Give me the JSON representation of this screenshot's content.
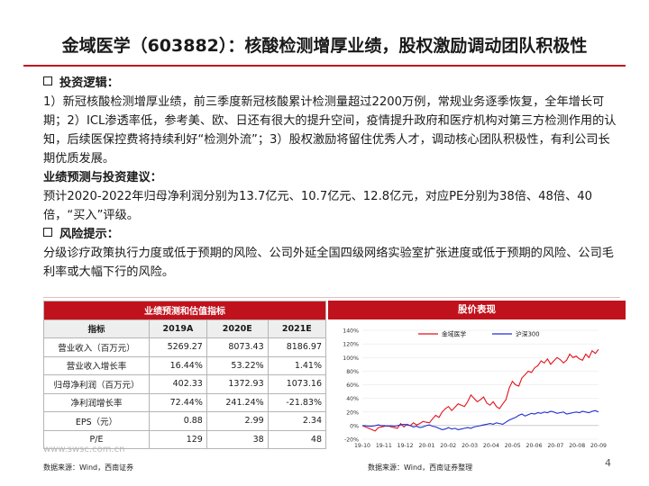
{
  "title": "金域医学（603882）：核酸检测增厚业绩，股权激励调动团队积极性",
  "logic": {
    "heading": "投资逻辑：",
    "body": "1）新冠核酸检测增厚业绩，前三季度新冠核酸累计检测量超过2200万例，常规业务逐季恢复，全年增长可期；2）ICL渗透率低，参考美、欧、日还有很大的提升空间，疫情提升政府和医疗机构对第三方检测作用的认知，后续医保控费将持续利好“检测外流”；3）股权激励将留住优秀人才，调动核心团队积极性，有利公司长期优质发展。"
  },
  "forecast": {
    "heading": "业绩预测与投资建议：",
    "body": "预计2020-2022年归母净利润分别为13.7亿元、10.7亿元、12.8亿元，对应PE分别为38倍、48倍、40倍，“买入”评级。"
  },
  "risk": {
    "heading": "风险提示：",
    "body": "分级诊疗政策执行力度或低于预期的风险、公司外延全国四级网络实验室扩张进度或低于预期的风险、公司毛利率或大幅下行的风险。"
  },
  "table": {
    "title": "业绩预测和估值指标",
    "headers": [
      "指标",
      "2019A",
      "2020E",
      "2021E"
    ],
    "rows": [
      {
        "label": "营业收入（百万元）",
        "values": [
          "5269.27",
          "8073.43",
          "8186.97"
        ]
      },
      {
        "label": "营业收入增长率",
        "values": [
          "16.44%",
          "53.22%",
          "1.41%"
        ]
      },
      {
        "label": "归母净利润（百万元）",
        "values": [
          "402.33",
          "1372.93",
          "1073.16"
        ]
      },
      {
        "label": "净利润增长率",
        "values": [
          "72.44%",
          "241.24%",
          "-21.83%"
        ]
      },
      {
        "label": "EPS（元）",
        "values": [
          "0.88",
          "2.99",
          "2.34"
        ]
      },
      {
        "label": "P/E",
        "values": [
          "129",
          "38",
          "48"
        ]
      }
    ],
    "source": "数据来源：Wind，西南证券"
  },
  "chart_panel": {
    "title": "股价表现",
    "source": "数据来源：Wind，西南证券整理"
  },
  "watermark": "www.swsc.com.cn",
  "page_number": "4",
  "colors": {
    "accent": "#c0121c",
    "series_red": "#e3121b",
    "series_blue": "#1f2fd1"
  },
  "chart_data": {
    "type": "line",
    "title": "",
    "x_ticks": [
      "19-10",
      "19-11",
      "19-12",
      "20-01",
      "20-02",
      "20-03",
      "20-04",
      "20-05",
      "20-06",
      "20-07",
      "20-08",
      "20-09"
    ],
    "ylim": [
      -20,
      140
    ],
    "y_ticks": [
      "-20%",
      "0%",
      "20%",
      "40%",
      "60%",
      "80%",
      "100%",
      "120%",
      "140%"
    ],
    "legend_position": "top",
    "series": [
      {
        "name": "金域医学",
        "color": "#e3121b",
        "values": [
          0,
          -2,
          -4,
          -6,
          -8,
          -3,
          -2,
          -1,
          0,
          -2,
          -3,
          -4,
          3,
          -2,
          2,
          0,
          4,
          1,
          3,
          6,
          5,
          4,
          10,
          15,
          12,
          20,
          25,
          28,
          22,
          27,
          32,
          30,
          28,
          35,
          45,
          40,
          35,
          38,
          42,
          33,
          30,
          35,
          28,
          25,
          32,
          38,
          55,
          65,
          60,
          58,
          70,
          75,
          80,
          78,
          85,
          88,
          95,
          92,
          98,
          90,
          95,
          100,
          97,
          92,
          96,
          105,
          100,
          102,
          98,
          96,
          105,
          100,
          110,
          106,
          112
        ]
      },
      {
        "name": "沪深300",
        "color": "#1f2fd1",
        "values": [
          0,
          0,
          -1,
          -1,
          0,
          1,
          0,
          0,
          -1,
          0,
          -1,
          0,
          1,
          2,
          1,
          0,
          -2,
          -1,
          -3,
          -2,
          0,
          1,
          -1,
          -2,
          -4,
          -6,
          -5,
          -3,
          -5,
          -4,
          -6,
          -5,
          -4,
          -3,
          -4,
          -2,
          -1,
          0,
          1,
          2,
          3,
          2,
          4,
          3,
          2,
          5,
          8,
          10,
          12,
          15,
          17,
          14,
          16,
          18,
          17,
          19,
          18,
          20,
          19,
          21,
          20,
          18,
          19,
          20,
          17,
          18,
          19,
          20,
          19,
          21,
          20,
          19,
          21,
          22,
          20
        ]
      }
    ]
  }
}
